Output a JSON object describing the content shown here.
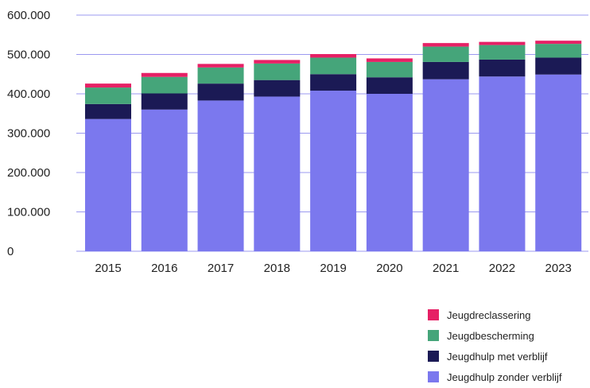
{
  "chart_data": {
    "type": "bar",
    "stacked": true,
    "categories": [
      "2015",
      "2016",
      "2017",
      "2018",
      "2019",
      "2020",
      "2021",
      "2022",
      "2023"
    ],
    "ylim": [
      0,
      600000
    ],
    "y_ticks": [
      0,
      100000,
      200000,
      300000,
      400000,
      500000,
      600000
    ],
    "y_tick_labels": [
      "0",
      "100.000",
      "200.000",
      "300.000",
      "400.000",
      "500.000",
      "600.000"
    ],
    "grid": "horizontal",
    "legend_position": "bottom-right",
    "series": [
      {
        "name": "Jeugdhulp zonder verblijf",
        "color": "#7b78ee",
        "values": [
          336000,
          360000,
          383000,
          393000,
          408000,
          400000,
          437000,
          444000,
          449000
        ]
      },
      {
        "name": "Jeugdhulp met verblijf",
        "color": "#1b1a55",
        "values": [
          38000,
          41000,
          43000,
          42000,
          42000,
          42000,
          44000,
          43000,
          43000
        ]
      },
      {
        "name": "Jeugdbescherming",
        "color": "#45a57a",
        "values": [
          42000,
          42000,
          41000,
          42000,
          42000,
          39000,
          39000,
          37000,
          35000
        ]
      },
      {
        "name": "Jeugdreclassering",
        "color": "#e62065",
        "values": [
          10000,
          10000,
          9000,
          9000,
          9000,
          9000,
          9000,
          8000,
          8000
        ]
      }
    ]
  },
  "legend": [
    {
      "label": "Jeugdreclassering",
      "color": "#e62065"
    },
    {
      "label": "Jeugdbescherming",
      "color": "#45a57a"
    },
    {
      "label": "Jeugdhulp met verblijf",
      "color": "#1b1a55"
    },
    {
      "label": "Jeugdhulp zonder verblijf",
      "color": "#7b78ee"
    }
  ]
}
